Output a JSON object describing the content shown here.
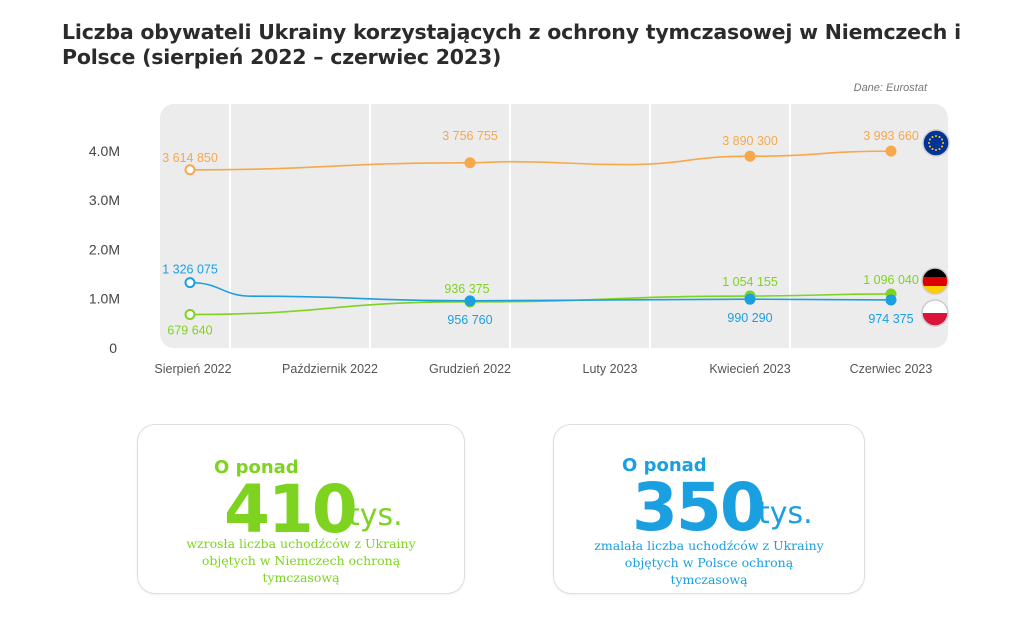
{
  "header": {
    "title": "Liczba obywateli Ukrainy korzystających z ochrony tymczasowej w Niemczech i Polsce (sierpień 2022 – czerwiec 2023)",
    "source": "Dane: Eurostat"
  },
  "colors": {
    "eu": "#f6a84b",
    "germany": "#7ed321",
    "poland": "#1a9fe0",
    "plot_bg": "#ececec",
    "gridline": "#ffffff"
  },
  "chart_data": {
    "type": "line",
    "x_categories": [
      "Sierpień 2022",
      "Październik 2022",
      "Grudzień 2022",
      "Luty 2023",
      "Kwiecień 2023",
      "Czerwiec 2023"
    ],
    "y_ticks": [
      "0",
      "1.0M",
      "2.0M",
      "3.0M",
      "4.0M"
    ],
    "y_tick_values": [
      0,
      1000000,
      2000000,
      3000000,
      4000000
    ],
    "ylim": [
      0,
      5000000
    ],
    "grid": true,
    "series": [
      {
        "key": "eu",
        "flag": "eu-flag-icon",
        "points": [
          {
            "x": 0,
            "y": 3614850,
            "label": "3 614 850"
          },
          {
            "x": 2,
            "y": 3756755,
            "label": "3 756 755"
          },
          {
            "x": 4,
            "y": 3890300,
            "label": "3 890 300"
          },
          {
            "x": 5,
            "y": 3993660,
            "label": "3 993 660"
          }
        ],
        "line": [
          [
            0,
            3614850
          ],
          [
            2,
            3756755
          ],
          [
            2.3,
            3780000
          ],
          [
            3.1,
            3720000
          ],
          [
            4,
            3890300
          ],
          [
            5,
            3993660
          ]
        ]
      },
      {
        "key": "germany",
        "flag": "germany-flag-icon",
        "points": [
          {
            "x": 0,
            "y": 679640,
            "label": "679 640"
          },
          {
            "x": 2,
            "y": 936375,
            "label": "936 375"
          },
          {
            "x": 4,
            "y": 1054155,
            "label": "1 054 155"
          },
          {
            "x": 5,
            "y": 1096040,
            "label": "1 096 040"
          }
        ],
        "line": [
          [
            0,
            679640
          ],
          [
            2,
            936375
          ],
          [
            4,
            1054155
          ],
          [
            5,
            1096040
          ]
        ]
      },
      {
        "key": "poland",
        "flag": "poland-flag-icon",
        "points": [
          {
            "x": 0,
            "y": 1326075,
            "label": "1 326 075"
          },
          {
            "x": 2,
            "y": 956760,
            "label": "956 760"
          },
          {
            "x": 4,
            "y": 990290,
            "label": "990 290"
          },
          {
            "x": 5,
            "y": 974375,
            "label": "974 375"
          }
        ],
        "line": [
          [
            0,
            1326075
          ],
          [
            0.45,
            1050000
          ],
          [
            2,
            956760
          ],
          [
            4,
            990290
          ],
          [
            5,
            974375
          ]
        ]
      }
    ]
  },
  "cards": {
    "germany": {
      "prefix": "O ponad",
      "number": "410",
      "unit": "tys.",
      "description": "wzrosła liczba uchodźców z Ukrainy objętych w Niemczech ochroną tymczasową"
    },
    "poland": {
      "prefix": "O ponad",
      "number": "350",
      "unit": "tys.",
      "description": "zmalała liczba uchodźców z Ukrainy objętych w Polsce ochroną tymczasową"
    }
  }
}
